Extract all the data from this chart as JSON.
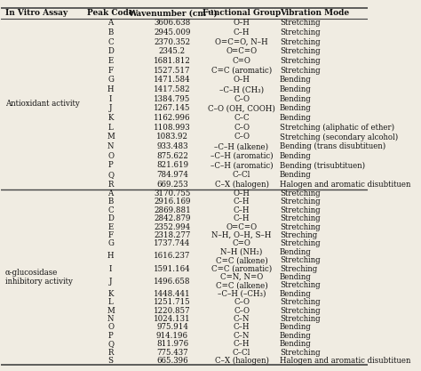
{
  "title_row": [
    "In Vitro Assay",
    "Peak Code",
    "Wavenumber (cm⁻¹)",
    "Functional Group",
    "Vibration Mode"
  ],
  "section1_label": "Antioxidant activity",
  "section1_rows": [
    [
      "A",
      "3606.638",
      "O–H",
      "Stretching"
    ],
    [
      "B",
      "2945.009",
      "C–H",
      "Stretching"
    ],
    [
      "C",
      "2370.352",
      "O=C=O, N–H",
      "Stretching"
    ],
    [
      "D",
      "2345.2",
      "O=C=O",
      "Stretching"
    ],
    [
      "E",
      "1681.812",
      "C=O",
      "Stretching"
    ],
    [
      "F",
      "1527.517",
      "C=C (aromatic)",
      "Stretching"
    ],
    [
      "G",
      "1471.584",
      "O–H",
      "Bending"
    ],
    [
      "H",
      "1417.582",
      "–C–H (CH₃)",
      "Bending"
    ],
    [
      "I",
      "1384.795",
      "C–O",
      "Bending"
    ],
    [
      "J",
      "1267.145",
      "C–O (OH, COOH)",
      "Bending"
    ],
    [
      "K",
      "1162.996",
      "C–C",
      "Bending"
    ],
    [
      "L",
      "1108.993",
      "C–O",
      "Stretching (aliphatic of ether)"
    ],
    [
      "M",
      "1083.92",
      "C–O",
      "Stretching (secondary alcohol)"
    ],
    [
      "N",
      "933.483",
      "–C–H (alkene)",
      "Bending (trans disubtituen)"
    ],
    [
      "O",
      "875.622",
      "–C–H (aromatic)",
      "Bending"
    ],
    [
      "P",
      "821.619",
      "–C–H (aromatic)",
      "Bending (trisubtituen)"
    ],
    [
      "Q",
      "784.974",
      "C–Cl",
      "Bending"
    ],
    [
      "R",
      "669.253",
      "C–X (halogen)",
      "Halogen and aromatic disubtituen"
    ]
  ],
  "section2_label_line1": "α-glucosidase",
  "section2_label_line2": "inhibitory activity",
  "section2_rows": [
    {
      "peak": "A",
      "wave": "3170.755",
      "func": "O–H",
      "vib": "Stretching",
      "double": false
    },
    {
      "peak": "B",
      "wave": "2916.169",
      "func": "C–H",
      "vib": "Stretching",
      "double": false
    },
    {
      "peak": "C",
      "wave": "2869.881",
      "func": "C–H",
      "vib": "Stretching",
      "double": false
    },
    {
      "peak": "D",
      "wave": "2842.879",
      "func": "C–H",
      "vib": "Stretching",
      "double": false
    },
    {
      "peak": "E",
      "wave": "2352.994",
      "func": "O=C=O",
      "vib": "Stretching",
      "double": false
    },
    {
      "peak": "F",
      "wave": "2318.277",
      "func": "N–H, O–H, S–H",
      "vib": "Streching",
      "double": false
    },
    {
      "peak": "G",
      "wave": "1737.744",
      "func": "C=O",
      "vib": "Stretching",
      "double": false
    },
    {
      "peak": "H",
      "wave": "1616.237",
      "func1": "N–H (NH₂)",
      "vib1": "Bending",
      "func2": "C=C (alkene)",
      "vib2": "Stretching",
      "double": true
    },
    {
      "peak": "I",
      "wave": "1591.164",
      "func": "C=C (aromatic)",
      "vib": "Streching",
      "double": false
    },
    {
      "peak": "J",
      "wave": "1496.658",
      "func1": "C=N, N=O",
      "vib1": "Bending",
      "func2": "C=C (alkene)",
      "vib2": "Stretching",
      "double": true
    },
    {
      "peak": "K",
      "wave": "1448.441",
      "func": "–C–H (–CH₃)",
      "vib": "Bending",
      "double": false
    },
    {
      "peak": "L",
      "wave": "1251.715",
      "func": "C–O",
      "vib": "Stretching",
      "double": false
    },
    {
      "peak": "M",
      "wave": "1220.857",
      "func": "C–O",
      "vib": "Stretching",
      "double": false
    },
    {
      "peak": "N",
      "wave": "1024.131",
      "func": "C–N",
      "vib": "Stretching",
      "double": false
    },
    {
      "peak": "O",
      "wave": "975.914",
      "func": "C–H",
      "vib": "Bending",
      "double": false
    },
    {
      "peak": "P",
      "wave": "914.196",
      "func": "C–N",
      "vib": "Bending",
      "double": false
    },
    {
      "peak": "Q",
      "wave": "811.976",
      "func": "C–H",
      "vib": "Bending",
      "double": false
    },
    {
      "peak": "R",
      "wave": "775.437",
      "func": "C–Cl",
      "vib": "Stretching",
      "double": false
    },
    {
      "peak": "S",
      "wave": "665.396",
      "func": "C–X (halogen)",
      "vib": "Halogen and aromatic disubtituen",
      "double": false
    }
  ],
  "bg_color": "#f0ece2",
  "line_color": "#444444",
  "text_color": "#111111",
  "font_size": 6.2,
  "header_font_size": 6.5
}
